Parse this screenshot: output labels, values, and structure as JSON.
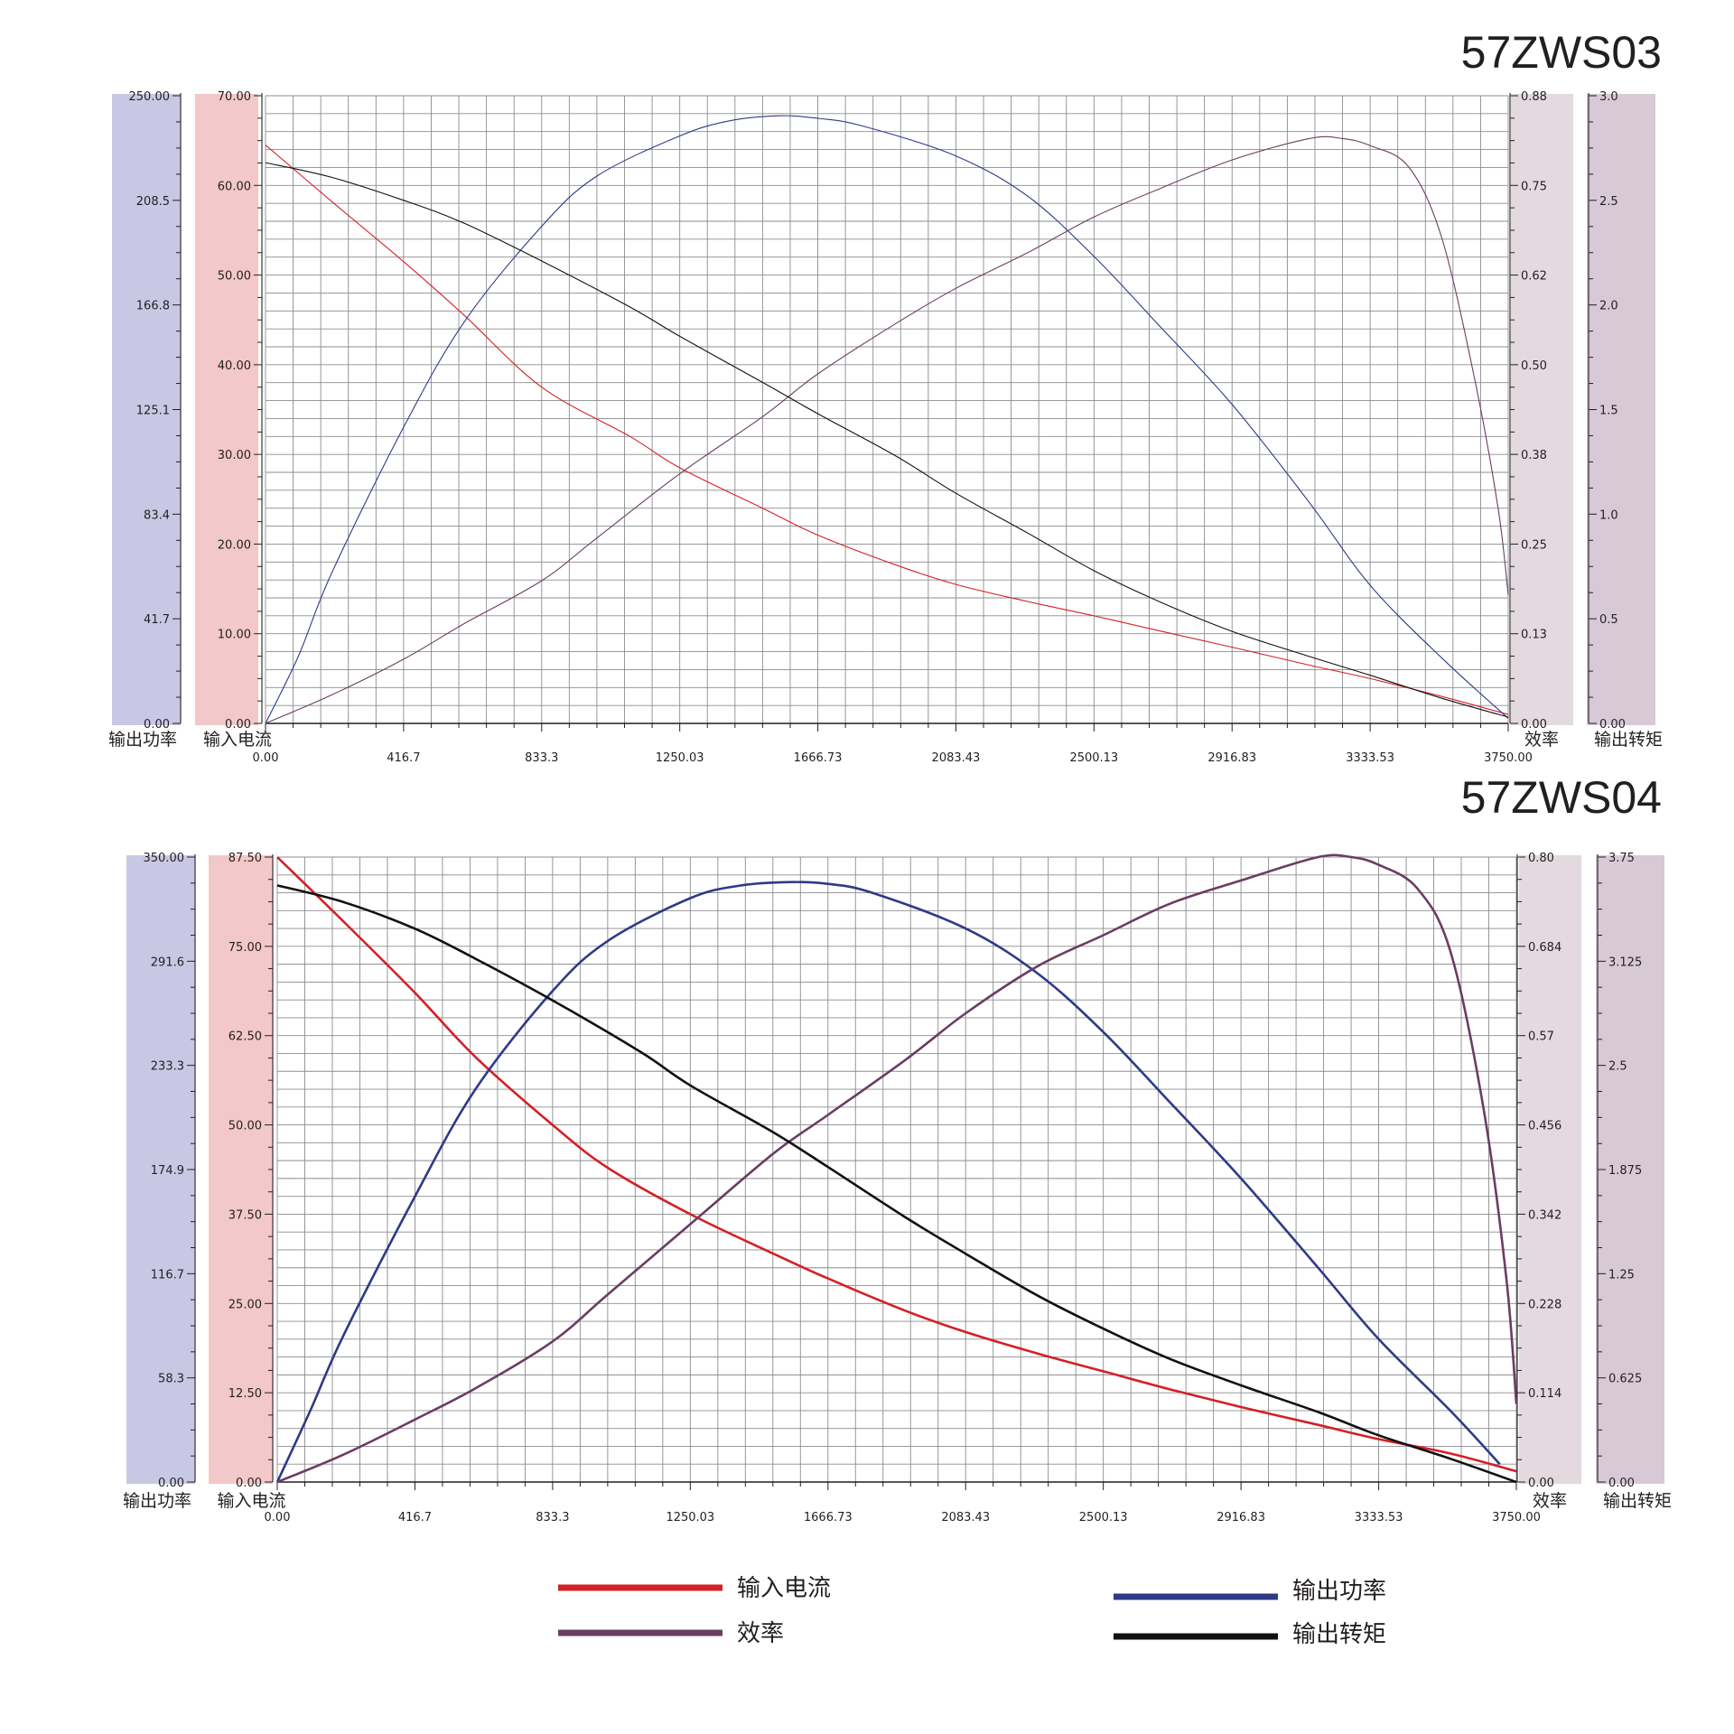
{
  "colors": {
    "current": "#d42027",
    "power": "#2e3a87",
    "efficiency": "#6b3d63",
    "torque": "#111111",
    "grid": "#8a8c8e",
    "band_power": "#c9c8e4",
    "band_current": "#f3c8c8",
    "band_efficiency": "#e3d9df",
    "band_torque": "#d8c9d7"
  },
  "legend": {
    "current": "输入电流",
    "power": "输出功率",
    "efficiency": "效率",
    "torque": "输出转矩"
  },
  "chart_data": [
    {
      "type": "line",
      "title": "57ZWS03",
      "x_ticks": [
        "0.00",
        "416.7",
        "833.3",
        "1250.03",
        "1666.73",
        "2083.43",
        "2500.13",
        "2916.83",
        "3333.53",
        "3750.00"
      ],
      "xlim": [
        0,
        3750
      ],
      "axes": {
        "power": {
          "label": "输出功率",
          "ticks": [
            "0.00",
            "41.7",
            "83.4",
            "125.1",
            "166.8",
            "208.5",
            "250.00"
          ],
          "ylim": [
            0,
            250
          ]
        },
        "current": {
          "label": "输入电流",
          "ticks": [
            "0.00",
            "10.00",
            "20.00",
            "30.00",
            "40.00",
            "50.00",
            "60.00",
            "70.00"
          ],
          "ylim": [
            0,
            70
          ]
        },
        "efficiency": {
          "label": "效率",
          "ticks": [
            "0.00",
            "0.13",
            "0.25",
            "0.38",
            "0.50",
            "0.62",
            "0.75",
            "0.88"
          ],
          "ylim": [
            0,
            0.88
          ]
        },
        "torque": {
          "label": "输出转矩",
          "ticks": [
            "0.00",
            "0.5",
            "1.0",
            "1.5",
            "2.0",
            "2.5",
            "3.0"
          ],
          "ylim": [
            0,
            3.0
          ]
        }
      },
      "series": [
        {
          "name": "输入电流",
          "key": "current",
          "axis": "current",
          "x": [
            0,
            200,
            416.7,
            600,
            833.3,
            1100,
            1250,
            1500,
            1666.7,
            1900,
            2083.4,
            2300,
            2500,
            2700,
            2916.8,
            3150,
            3333.5,
            3550,
            3750
          ],
          "y": [
            64.5,
            58.2,
            51.5,
            45.5,
            37.5,
            32.0,
            28.5,
            24.0,
            21.0,
            17.7,
            15.5,
            13.6,
            12.0,
            10.3,
            8.5,
            6.5,
            5.0,
            3.0,
            1.0
          ]
        },
        {
          "name": "输出功率",
          "key": "power",
          "axis": "power",
          "x": [
            0,
            100,
            200,
            416.7,
            600,
            833.3,
            1000,
            1250,
            1400,
            1550,
            1666.7,
            1800,
            2083.4,
            2300,
            2500,
            2700,
            2916.8,
            3150,
            3333.5,
            3550,
            3750
          ],
          "y": [
            0,
            27,
            60,
            118,
            160,
            198,
            218,
            234,
            240,
            242,
            241,
            238,
            226,
            210,
            186,
            158,
            127,
            88,
            55,
            26,
            2
          ]
        },
        {
          "name": "效率",
          "key": "efficiency",
          "axis": "efficiency",
          "x": [
            0,
            200,
            416.7,
            600,
            833.3,
            1000,
            1250,
            1500,
            1666.7,
            1900,
            2083.4,
            2300,
            2500,
            2700,
            2916.8,
            3150,
            3250,
            3333.5,
            3450,
            3550,
            3650,
            3720,
            3750
          ],
          "y": [
            0,
            0.04,
            0.09,
            0.14,
            0.2,
            0.26,
            0.35,
            0.43,
            0.49,
            0.56,
            0.61,
            0.66,
            0.71,
            0.75,
            0.79,
            0.82,
            0.82,
            0.81,
            0.78,
            0.68,
            0.48,
            0.3,
            0.18
          ]
        },
        {
          "name": "输出转矩",
          "key": "torque",
          "axis": "torque",
          "x": [
            0,
            200,
            416.7,
            600,
            833.3,
            1100,
            1250,
            1500,
            1666.7,
            1900,
            2083.4,
            2300,
            2500,
            2700,
            2916.8,
            3150,
            3333.5,
            3550,
            3750
          ],
          "y": [
            2.68,
            2.61,
            2.5,
            2.39,
            2.21,
            1.99,
            1.85,
            1.63,
            1.48,
            1.28,
            1.1,
            0.91,
            0.73,
            0.58,
            0.44,
            0.32,
            0.23,
            0.12,
            0.03
          ]
        }
      ]
    },
    {
      "type": "line",
      "title": "57ZWS04",
      "x_ticks": [
        "0.00",
        "416.7",
        "833.3",
        "1250.03",
        "1666.73",
        "2083.43",
        "2500.13",
        "2916.83",
        "3333.53",
        "3750.00"
      ],
      "xlim": [
        0,
        3750
      ],
      "axes": {
        "power": {
          "label": "输出功率",
          "ticks": [
            "0.00",
            "58.3",
            "116.7",
            "174.9",
            "233.3",
            "291.6",
            "350.00"
          ],
          "ylim": [
            0,
            350
          ]
        },
        "current": {
          "label": "输入电流",
          "ticks": [
            "0.00",
            "12.50",
            "25.00",
            "37.50",
            "50.00",
            "62.50",
            "75.00",
            "87.50"
          ],
          "ylim": [
            0,
            87.5
          ]
        },
        "efficiency": {
          "label": "效率",
          "ticks": [
            "0.00",
            "0.114",
            "0.228",
            "0.342",
            "0.456",
            "0.57",
            "0.684",
            "0.80"
          ],
          "ylim": [
            0,
            0.8
          ]
        },
        "torque": {
          "label": "输出转矩",
          "ticks": [
            "0.00",
            "0.625",
            "1.25",
            "1.875",
            "2.5",
            "3.125",
            "3.75"
          ],
          "ylim": [
            0,
            3.75
          ]
        }
      },
      "series": [
        {
          "name": "输入电流",
          "key": "current",
          "axis": "current",
          "x": [
            0,
            200,
            416.7,
            600,
            833.3,
            1000,
            1250,
            1500,
            1666.7,
            1900,
            2083.4,
            2300,
            2500,
            2700,
            2916.8,
            3150,
            3333.5,
            3550,
            3750
          ],
          "y": [
            87.5,
            78.5,
            68.5,
            59.5,
            50.0,
            44.0,
            37.5,
            32.0,
            28.5,
            24.0,
            21.0,
            18.0,
            15.5,
            13.0,
            10.5,
            8.0,
            6.0,
            4.0,
            1.5
          ]
        },
        {
          "name": "输出功率",
          "key": "power",
          "axis": "power",
          "x": [
            0,
            100,
            200,
            416.7,
            600,
            833.3,
            1000,
            1250,
            1400,
            1550,
            1666.7,
            1800,
            2083.4,
            2300,
            2500,
            2700,
            2916.8,
            3150,
            3333.5,
            3550,
            3700
          ],
          "y": [
            0,
            40,
            82,
            160,
            220,
            275,
            303,
            327,
            334,
            336,
            335,
            330,
            310,
            285,
            252,
            213,
            170,
            120,
            80,
            40,
            10
          ]
        },
        {
          "name": "效率",
          "key": "efficiency",
          "axis": "efficiency",
          "x": [
            0,
            200,
            416.7,
            600,
            833.3,
            1000,
            1250,
            1500,
            1666.7,
            1900,
            2083.4,
            2300,
            2500,
            2700,
            2916.8,
            3150,
            3250,
            3333.5,
            3450,
            3550,
            3650,
            3720,
            3750
          ],
          "y": [
            0,
            0.035,
            0.08,
            0.12,
            0.18,
            0.24,
            0.33,
            0.42,
            0.47,
            0.54,
            0.6,
            0.66,
            0.7,
            0.74,
            0.77,
            0.8,
            0.8,
            0.79,
            0.76,
            0.68,
            0.48,
            0.26,
            0.1
          ]
        },
        {
          "name": "输出转矩",
          "key": "torque",
          "axis": "torque",
          "x": [
            0,
            200,
            416.7,
            600,
            833.3,
            1100,
            1250,
            1500,
            1666.7,
            1900,
            2083.4,
            2300,
            2500,
            2700,
            2916.8,
            3150,
            3333.5,
            3550,
            3750
          ],
          "y": [
            3.58,
            3.48,
            3.32,
            3.14,
            2.89,
            2.58,
            2.38,
            2.1,
            1.89,
            1.59,
            1.37,
            1.12,
            0.92,
            0.74,
            0.58,
            0.42,
            0.28,
            0.14,
            0.0
          ]
        }
      ]
    }
  ]
}
